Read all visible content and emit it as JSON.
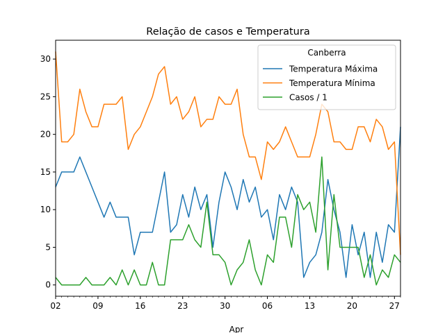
{
  "chart_data": {
    "type": "line",
    "title": "Relação de casos e Temperatura",
    "xlabel": "Apr",
    "ylabel": "",
    "x_start": "2020-03-02",
    "x_end": "2020-04-28",
    "xlim": [
      "2020-03-02",
      "2020-04-28"
    ],
    "ylim": [
      -1.5,
      32.5
    ],
    "yticks": [
      0,
      5,
      10,
      15,
      20,
      25,
      30
    ],
    "xticks": [
      {
        "date": "2020-03-02",
        "label": "02"
      },
      {
        "date": "2020-03-09",
        "label": "09"
      },
      {
        "date": "2020-03-16",
        "label": "16"
      },
      {
        "date": "2020-03-23",
        "label": "23"
      },
      {
        "date": "2020-03-30",
        "label": "30"
      },
      {
        "date": "2020-04-06",
        "label": "06"
      },
      {
        "date": "2020-04-13",
        "label": "13"
      },
      {
        "date": "2020-04-20",
        "label": "20"
      },
      {
        "date": "2020-04-27",
        "label": "27"
      }
    ],
    "legend": {
      "title": "Canberra",
      "position": "top-right"
    },
    "grid": false,
    "series": [
      {
        "name": "Temperatura Máxima",
        "color": "#1f77b4",
        "values": [
          13,
          15,
          15,
          15,
          17,
          15,
          13,
          11,
          9,
          11,
          9,
          9,
          9,
          4,
          7,
          7,
          7,
          11,
          15,
          7,
          8,
          12,
          9,
          13,
          10,
          12,
          5,
          11,
          15,
          13,
          10,
          14,
          11,
          13,
          9,
          10,
          6,
          12,
          10,
          13,
          11,
          1,
          3,
          4,
          7,
          14,
          10,
          7,
          1,
          8,
          4,
          7,
          1,
          7,
          3,
          8,
          7,
          21
        ]
      },
      {
        "name": "Temperatura Mínima",
        "color": "#ff7f0e",
        "values": [
          31,
          19,
          19,
          20,
          26,
          23,
          21,
          21,
          24,
          24,
          24,
          25,
          18,
          20,
          21,
          23,
          25,
          28,
          29,
          24,
          25,
          22,
          23,
          25,
          21,
          22,
          22,
          25,
          24,
          24,
          26,
          20,
          17,
          17,
          14,
          19,
          18,
          19,
          21,
          19,
          17,
          17,
          17,
          20,
          24,
          23,
          19,
          19,
          18,
          18,
          21,
          21,
          19,
          22,
          21,
          18,
          19,
          4
        ]
      },
      {
        "name": "Casos / 1",
        "color": "#2ca02c",
        "values": [
          1,
          0,
          0,
          0,
          0,
          1,
          0,
          0,
          0,
          1,
          0,
          2,
          0,
          2,
          0,
          0,
          3,
          0,
          0,
          6,
          6,
          6,
          8,
          6,
          5,
          11,
          4,
          4,
          3,
          0,
          2,
          3,
          6,
          2,
          0,
          4,
          3,
          9,
          9,
          5,
          12,
          10,
          11,
          7,
          17,
          2,
          12,
          5,
          5,
          5,
          5,
          1,
          4,
          0,
          2,
          1,
          4,
          3
        ]
      }
    ]
  }
}
